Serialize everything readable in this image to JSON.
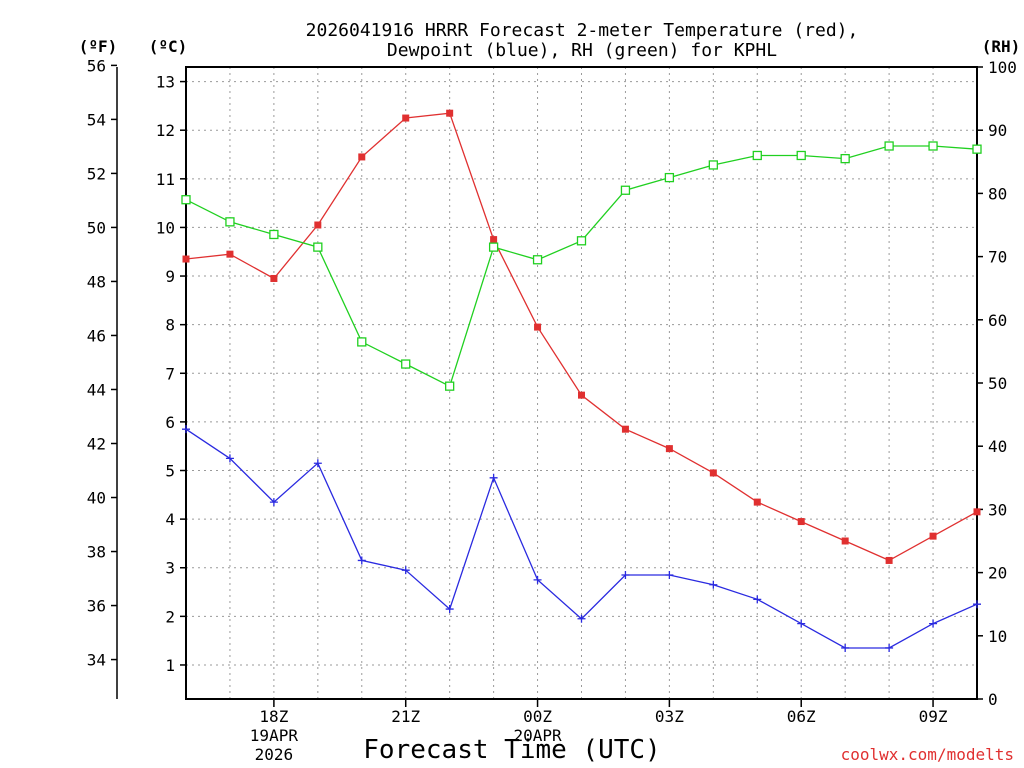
{
  "chart_data": {
    "type": "line",
    "title": [
      "2026041916 HRRR Forecast 2-meter Temperature (red),",
      "Dewpoint (blue), RH (green) for KPHL"
    ],
    "xlabel": "Forecast Time (UTC)",
    "credit": "coolwx.com/modelts",
    "axes": {
      "fahrenheit": {
        "unit_label": "(ºF)",
        "ticks": [
          34,
          36,
          38,
          40,
          42,
          44,
          46,
          48,
          50,
          52,
          54,
          56
        ]
      },
      "celsius": {
        "unit_label": "(ºC)",
        "range": [
          0.3,
          13.3
        ],
        "ticks": [
          1,
          2,
          3,
          4,
          5,
          6,
          7,
          8,
          9,
          10,
          11,
          12,
          13
        ]
      },
      "rh": {
        "unit_label": "(RH)",
        "range": [
          0,
          100
        ],
        "ticks": [
          0,
          10,
          20,
          30,
          40,
          50,
          60,
          70,
          80,
          90,
          100
        ]
      }
    },
    "x": {
      "hours": [
        16,
        17,
        18,
        19,
        20,
        21,
        22,
        23,
        24,
        25,
        26,
        27,
        28,
        29,
        30,
        31,
        32,
        33,
        34
      ],
      "range": [
        16,
        34
      ],
      "tick_hours": [
        18,
        21,
        24,
        27,
        30,
        33
      ],
      "tick_labels": [
        "18Z",
        "21Z",
        "00Z",
        "03Z",
        "06Z",
        "09Z"
      ],
      "date_labels": [
        {
          "hour": 18,
          "lines": [
            "19APR",
            "2026"
          ]
        },
        {
          "hour": 24,
          "lines": [
            "20APR"
          ]
        }
      ]
    },
    "series": [
      {
        "name": "2-meter Temperature",
        "axis": "celsius",
        "color": "#e03030",
        "marker": "filled-square",
        "values": [
          9.35,
          9.45,
          8.95,
          10.05,
          11.45,
          12.25,
          12.35,
          9.75,
          7.95,
          6.55,
          5.85,
          5.45,
          4.95,
          4.35,
          3.95,
          3.55,
          3.15,
          3.65,
          4.15
        ]
      },
      {
        "name": "Dewpoint",
        "axis": "celsius",
        "color": "#2a2ae0",
        "marker": "plus",
        "values": [
          5.85,
          5.25,
          4.35,
          5.15,
          3.15,
          2.95,
          2.15,
          4.85,
          2.75,
          1.95,
          2.85,
          2.85,
          2.65,
          2.35,
          1.85,
          1.35,
          1.35,
          1.85,
          2.25
        ]
      },
      {
        "name": "RH",
        "axis": "rh",
        "color": "#20d020",
        "marker": "open-square",
        "values": [
          79,
          75.5,
          73.5,
          71.5,
          56.5,
          53,
          49.5,
          71.5,
          69.5,
          72.5,
          80.5,
          82.5,
          84.5,
          86,
          86,
          85.5,
          87.5,
          87.5,
          87
        ]
      }
    ]
  }
}
